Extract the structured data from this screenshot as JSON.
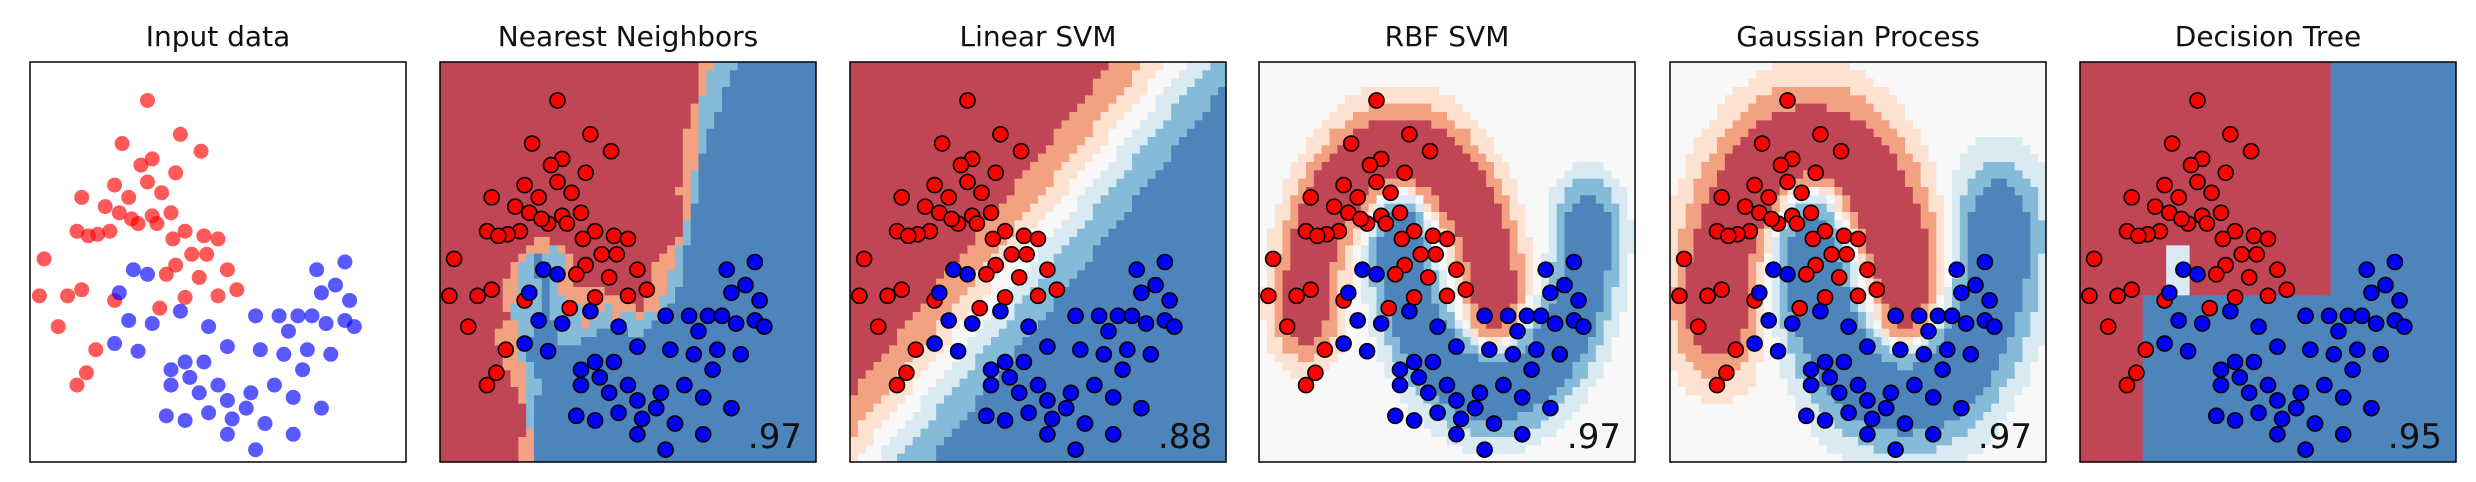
{
  "figure": {
    "panels": [
      {
        "title": "Input data",
        "score": "",
        "boundary": "none"
      },
      {
        "title": "Nearest Neighbors",
        "score": ".97",
        "boundary": "knn"
      },
      {
        "title": "Linear SVM",
        "score": ".88",
        "boundary": "linear"
      },
      {
        "title": "RBF SVM",
        "score": ".97",
        "boundary": "rbf"
      },
      {
        "title": "Gaussian Process",
        "score": ".97",
        "boundary": "gp"
      },
      {
        "title": "Decision Tree",
        "score": ".95",
        "boundary": "tree"
      }
    ],
    "colors": {
      "class_red": "#ff0000",
      "class_blue": "#0000ff",
      "deep_red": "#b2182b",
      "mid_red": "#ef8a62",
      "light_red": "#fddbc7",
      "neutral": "#f7f7f7",
      "light_blue": "#d1e5f0",
      "mid_blue": "#67a9cf",
      "deep_blue": "#2166ac",
      "marker_edge": "#000000"
    }
  },
  "chart_data": {
    "type": "scatter",
    "title": "",
    "xlim": [
      -1.5,
      2.5
    ],
    "ylim": [
      -1.0,
      1.6
    ],
    "grid": false,
    "legend": "none",
    "series": [
      {
        "name": "",
        "color": "#ff0000",
        "points": [
          [
            -0.25,
            1.35
          ],
          [
            0.1,
            1.13
          ],
          [
            0.32,
            1.02
          ],
          [
            -0.52,
            1.07
          ],
          [
            -0.2,
            0.97
          ],
          [
            -0.32,
            0.93
          ],
          [
            0.05,
            0.88
          ],
          [
            -0.6,
            0.8
          ],
          [
            -0.25,
            0.82
          ],
          [
            -0.45,
            0.72
          ],
          [
            -0.95,
            0.72
          ],
          [
            -0.7,
            0.66
          ],
          [
            -0.1,
            0.75
          ],
          [
            0.0,
            0.62
          ],
          [
            -0.2,
            0.6
          ],
          [
            -0.55,
            0.62
          ],
          [
            -0.35,
            0.55
          ],
          [
            -0.15,
            0.55
          ],
          [
            -0.42,
            0.58
          ],
          [
            -0.65,
            0.5
          ],
          [
            -0.78,
            0.48
          ],
          [
            -1.0,
            0.5
          ],
          [
            -0.88,
            0.47
          ],
          [
            0.15,
            0.5
          ],
          [
            0.35,
            0.47
          ],
          [
            0.5,
            0.45
          ],
          [
            0.02,
            0.45
          ],
          [
            -1.35,
            0.32
          ],
          [
            0.22,
            0.35
          ],
          [
            0.38,
            0.35
          ],
          [
            0.05,
            0.28
          ],
          [
            -0.05,
            0.22
          ],
          [
            0.3,
            0.2
          ],
          [
            0.6,
            0.25
          ],
          [
            -0.95,
            0.12
          ],
          [
            -1.1,
            0.08
          ],
          [
            -1.4,
            0.08
          ],
          [
            -0.12,
            0.0
          ],
          [
            0.15,
            0.07
          ],
          [
            -0.6,
            0.05
          ],
          [
            0.5,
            0.08
          ],
          [
            0.7,
            0.12
          ],
          [
            -1.2,
            -0.12
          ],
          [
            -0.8,
            -0.27
          ],
          [
            -0.9,
            -0.42
          ],
          [
            -1.0,
            -0.5
          ]
        ]
      },
      {
        "name": "",
        "color": "#0000ff",
        "points": [
          [
            -0.4,
            0.25
          ],
          [
            -0.25,
            0.22
          ],
          [
            -0.55,
            0.1
          ],
          [
            1.55,
            0.25
          ],
          [
            1.85,
            0.3
          ],
          [
            1.75,
            0.15
          ],
          [
            1.6,
            0.1
          ],
          [
            1.9,
            0.05
          ],
          [
            0.9,
            -0.05
          ],
          [
            1.15,
            -0.05
          ],
          [
            1.35,
            -0.05
          ],
          [
            1.5,
            -0.05
          ],
          [
            1.85,
            -0.08
          ],
          [
            1.65,
            -0.1
          ],
          [
            1.95,
            -0.12
          ],
          [
            0.1,
            -0.02
          ],
          [
            -0.45,
            -0.08
          ],
          [
            -0.2,
            -0.1
          ],
          [
            0.4,
            -0.12
          ],
          [
            1.25,
            -0.15
          ],
          [
            -0.6,
            -0.23
          ],
          [
            -0.35,
            -0.28
          ],
          [
            0.6,
            -0.25
          ],
          [
            0.95,
            -0.27
          ],
          [
            1.45,
            -0.27
          ],
          [
            1.2,
            -0.3
          ],
          [
            1.7,
            -0.3
          ],
          [
            0.15,
            -0.35
          ],
          [
            0.35,
            -0.35
          ],
          [
            0.0,
            -0.4
          ],
          [
            1.4,
            -0.4
          ],
          [
            0.2,
            -0.45
          ],
          [
            0.5,
            -0.5
          ],
          [
            0.0,
            -0.5
          ],
          [
            0.3,
            -0.55
          ],
          [
            0.85,
            -0.55
          ],
          [
            1.1,
            -0.5
          ],
          [
            0.6,
            -0.6
          ],
          [
            1.3,
            -0.58
          ],
          [
            0.8,
            -0.65
          ],
          [
            1.6,
            -0.65
          ],
          [
            -0.05,
            -0.7
          ],
          [
            0.4,
            -0.68
          ],
          [
            0.65,
            -0.72
          ],
          [
            0.15,
            -0.73
          ],
          [
            1.0,
            -0.75
          ],
          [
            0.6,
            -0.82
          ],
          [
            1.3,
            -0.82
          ],
          [
            0.9,
            -0.92
          ]
        ]
      }
    ]
  }
}
